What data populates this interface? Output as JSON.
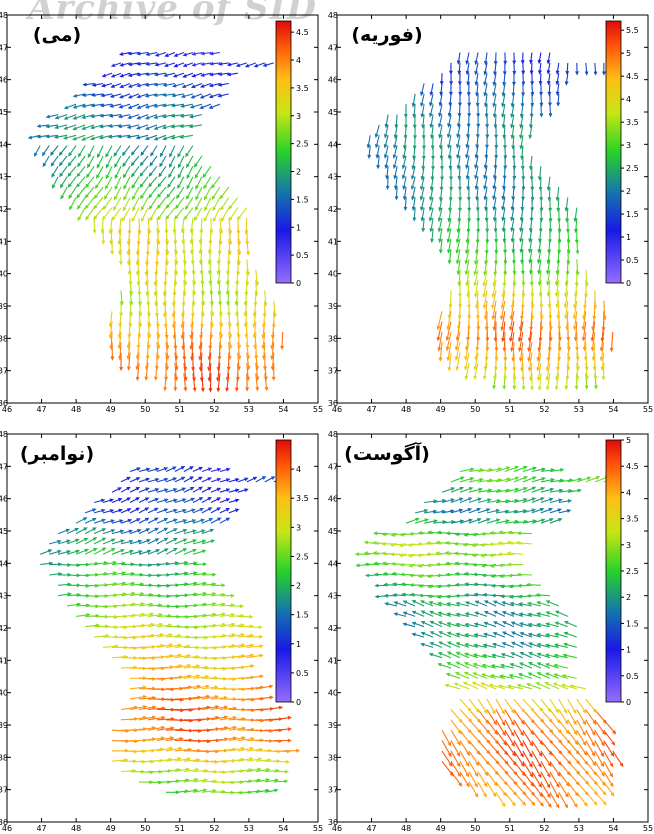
{
  "watermark": "Archive of SID",
  "chart_data": [
    {
      "type": "vector_field",
      "panel": "top-left",
      "title": "(می)",
      "xlim": [
        46,
        55
      ],
      "ylim": [
        36,
        48
      ],
      "xticks": [
        46,
        47,
        48,
        49,
        50,
        51,
        52,
        53,
        54,
        55
      ],
      "yticks": [
        36,
        37,
        38,
        39,
        40,
        41,
        42,
        43,
        44,
        45,
        46,
        47,
        48
      ],
      "colorbar": {
        "min": 0,
        "max": 4.7,
        "ticks": [
          "0",
          "0.5",
          "1",
          "1.5",
          "2",
          "2.5",
          "3",
          "3.5",
          "4",
          "4.5"
        ]
      },
      "speed_by_latitude": [
        [
          36.5,
          4.3
        ],
        [
          37.5,
          4.2
        ],
        [
          38.5,
          3.8
        ],
        [
          39.5,
          3.0
        ],
        [
          40.5,
          3.2
        ],
        [
          41.5,
          3.4
        ],
        [
          42.5,
          2.6
        ],
        [
          43.5,
          2.0
        ],
        [
          44.5,
          1.8
        ],
        [
          45.5,
          1.4
        ],
        [
          46.5,
          0.9
        ]
      ],
      "flow": "northern basin westward and south-westward, central and southern basin southward"
    },
    {
      "type": "vector_field",
      "panel": "top-right",
      "title": "(فوریه)",
      "xlim": [
        46,
        55
      ],
      "ylim": [
        36,
        48
      ],
      "xticks": [
        46,
        47,
        48,
        49,
        50,
        51,
        52,
        53,
        54,
        55
      ],
      "yticks": [
        36,
        37,
        38,
        39,
        40,
        41,
        42,
        43,
        44,
        45,
        46,
        47,
        48
      ],
      "colorbar": {
        "min": 0,
        "max": 5.7,
        "ticks": [
          "0",
          "0.5",
          "1",
          "1.5",
          "2",
          "2.5",
          "3",
          "3.5",
          "4",
          "4.5",
          "5",
          "5.5"
        ]
      },
      "speed_by_latitude": [
        [
          36.5,
          3.0
        ],
        [
          37.5,
          4.3
        ],
        [
          38.5,
          5.1
        ],
        [
          39.5,
          4.2
        ],
        [
          40.5,
          3.0
        ],
        [
          41.5,
          2.6
        ],
        [
          42.5,
          2.2
        ],
        [
          43.5,
          2.1
        ],
        [
          44.5,
          2.2
        ],
        [
          45.5,
          1.9
        ],
        [
          46.5,
          1.4
        ]
      ],
      "flow": "southward across the whole basin"
    },
    {
      "type": "vector_field",
      "panel": "bottom-left",
      "title": "(نوامبر)",
      "xlim": [
        46,
        55
      ],
      "ylim": [
        36,
        48
      ],
      "xticks": [
        46,
        47,
        48,
        49,
        50,
        51,
        52,
        53,
        54,
        55
      ],
      "yticks": [
        36,
        37,
        38,
        39,
        40,
        41,
        42,
        43,
        44,
        45,
        46,
        47,
        48
      ],
      "colorbar": {
        "min": 0,
        "max": 4.5,
        "ticks": [
          "0",
          "0.5",
          "1",
          "1.5",
          "2",
          "2.5",
          "3",
          "3.5",
          "4"
        ]
      },
      "speed_by_latitude": [
        [
          36.5,
          2.2
        ],
        [
          37.5,
          2.8
        ],
        [
          38.5,
          3.9
        ],
        [
          39.5,
          4.0
        ],
        [
          40.5,
          3.5
        ],
        [
          41.5,
          3.2
        ],
        [
          42.5,
          2.6
        ],
        [
          43.5,
          2.2
        ],
        [
          44.5,
          1.9
        ],
        [
          45.5,
          1.2
        ],
        [
          46.5,
          1.0
        ]
      ],
      "flow": "eastward and north-eastward across the basin"
    },
    {
      "type": "vector_field",
      "panel": "bottom-right",
      "title": "(آگوست)",
      "xlim": [
        46,
        55
      ],
      "ylim": [
        36,
        48
      ],
      "xticks": [
        46,
        47,
        48,
        49,
        50,
        51,
        52,
        53,
        54,
        55
      ],
      "yticks": [
        36,
        37,
        38,
        39,
        40,
        41,
        42,
        43,
        44,
        45,
        46,
        47,
        48
      ],
      "colorbar": {
        "min": 0,
        "max": 5,
        "ticks": [
          "0",
          "0.5",
          "1",
          "1.5",
          "2",
          "2.5",
          "3",
          "3.5",
          "4",
          "4.5",
          "5"
        ]
      },
      "speed_by_latitude": [
        [
          36.5,
          4.0
        ],
        [
          37.5,
          4.3
        ],
        [
          38.5,
          4.5
        ],
        [
          39.5,
          4.2
        ],
        [
          40.5,
          2.6
        ],
        [
          41.5,
          2.0
        ],
        [
          42.5,
          2.0
        ],
        [
          43.5,
          2.4
        ],
        [
          44.5,
          3.2
        ],
        [
          45.5,
          1.8
        ],
        [
          46.5,
          2.6
        ]
      ],
      "flow": "north-eastward in the north, westward in the central basin, south-eastward in the south"
    }
  ]
}
